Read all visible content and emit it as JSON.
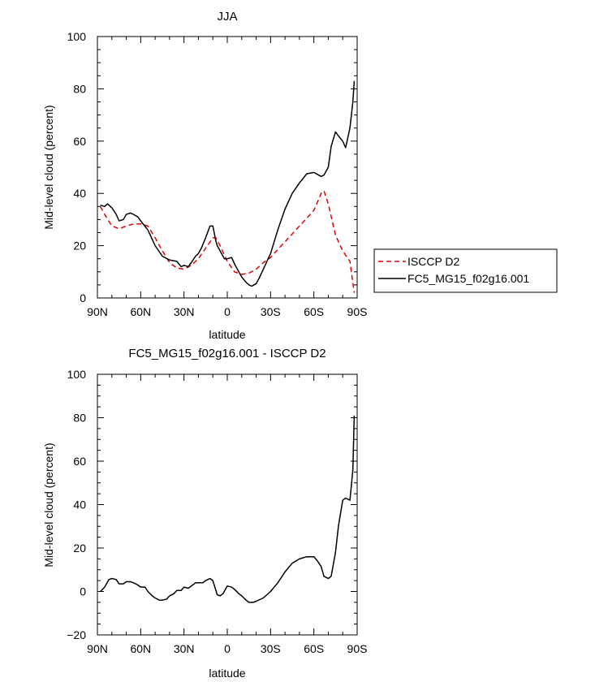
{
  "chart_data": [
    {
      "type": "line",
      "title": "JJA",
      "xlabel": "latitude",
      "ylabel": "Mid-level cloud (percent)",
      "xlim": [
        90,
        -90
      ],
      "ylim": [
        0,
        100
      ],
      "x_ticks": [
        90,
        60,
        30,
        0,
        -30,
        -60,
        -90
      ],
      "x_tick_labels": [
        "90N",
        "60N",
        "30N",
        "0",
        "30S",
        "60S",
        "90S"
      ],
      "y_ticks": [
        0,
        20,
        40,
        60,
        80,
        100
      ],
      "y_tick_labels": [
        "0",
        "20",
        "40",
        "60",
        "80",
        "100"
      ],
      "legend": {
        "placement": "right",
        "entries": [
          "ISCCP D2",
          "FC5_MG15_f02g16.001"
        ]
      },
      "series": [
        {
          "name": "ISCCP D2",
          "color": "#e00000",
          "dash": "dashed",
          "x": [
            88,
            85,
            80,
            75,
            70,
            65,
            60,
            55,
            50,
            45,
            40,
            35,
            30,
            25,
            20,
            15,
            10,
            8,
            5,
            0,
            -5,
            -10,
            -15,
            -20,
            -25,
            -30,
            -35,
            -40,
            -45,
            -50,
            -55,
            -60,
            -62,
            -65,
            -67,
            -70,
            -75,
            -80,
            -85,
            -88
          ],
          "y": [
            35,
            32,
            27.5,
            26.5,
            27.5,
            28.3,
            28.3,
            27.5,
            23,
            18,
            13.5,
            11.5,
            11,
            12.5,
            15,
            19,
            23,
            23,
            20,
            14,
            10,
            9,
            9.5,
            11,
            13.5,
            15.5,
            18.5,
            21.5,
            24.5,
            27.5,
            30.5,
            33.5,
            36,
            40,
            41,
            36,
            24,
            18,
            14,
            2
          ]
        },
        {
          "name": "FC5_MG15_f02g16.001",
          "color": "#000000",
          "dash": "solid",
          "x": [
            88,
            85,
            83,
            80,
            77,
            75,
            72,
            70,
            67,
            65,
            62,
            60,
            55,
            50,
            45,
            40,
            35,
            32,
            30,
            27,
            25,
            22,
            20,
            18,
            15,
            12,
            10,
            8,
            7,
            5,
            2,
            0,
            -3,
            -5,
            -8,
            -10,
            -13,
            -15,
            -17,
            -20,
            -22,
            -25,
            -30,
            -35,
            -40,
            -45,
            -50,
            -55,
            -60,
            -65,
            -67,
            -70,
            -72,
            -75,
            -77,
            -80,
            -82,
            -85,
            -87,
            -88
          ],
          "y": [
            35.5,
            35,
            36,
            34.5,
            32,
            29.5,
            30,
            32,
            32.5,
            32,
            31,
            29.5,
            26,
            20,
            16,
            14.5,
            14,
            12,
            12.5,
            12,
            13.5,
            16,
            17,
            19,
            23,
            27.5,
            27.5,
            22,
            20,
            18,
            15,
            15,
            15.5,
            13,
            10,
            8,
            6,
            5,
            4.5,
            5.5,
            7.5,
            11,
            17,
            26,
            34,
            40,
            44,
            47.5,
            48,
            46.5,
            47,
            50,
            58,
            63.5,
            62,
            60,
            57.5,
            65,
            75,
            83
          ]
        }
      ]
    },
    {
      "type": "line",
      "title": "FC5_MG15_f02g16.001 - ISCCP D2",
      "xlabel": "latitude",
      "ylabel": "Mid-level cloud (percent)",
      "xlim": [
        90,
        -90
      ],
      "ylim": [
        -20,
        100
      ],
      "x_ticks": [
        90,
        60,
        30,
        0,
        -30,
        -60,
        -90
      ],
      "x_tick_labels": [
        "90N",
        "60N",
        "30N",
        "0",
        "30S",
        "60S",
        "90S"
      ],
      "y_ticks": [
        -20,
        0,
        20,
        40,
        60,
        80,
        100
      ],
      "y_tick_labels": [
        "−20",
        "0",
        "20",
        "40",
        "60",
        "80",
        "100"
      ],
      "series": [
        {
          "color": "#000000",
          "dash": "solid",
          "x": [
            88,
            85,
            82,
            80,
            77,
            75,
            72,
            70,
            67,
            65,
            62,
            60,
            57,
            55,
            52,
            50,
            47,
            45,
            42,
            40,
            37,
            35,
            32,
            30,
            27,
            25,
            22,
            20,
            17,
            15,
            12,
            10,
            7,
            5,
            3,
            0,
            -3,
            -5,
            -8,
            -10,
            -13,
            -15,
            -18,
            -20,
            -25,
            -30,
            -35,
            -40,
            -45,
            -50,
            -55,
            -60,
            -62,
            -65,
            -67,
            -70,
            -72,
            -75,
            -77,
            -80,
            -82,
            -85,
            -87,
            -88
          ],
          "y": [
            0,
            2,
            5.5,
            6,
            5.5,
            3.5,
            3.5,
            4.5,
            4.5,
            4,
            3,
            2,
            2,
            0,
            -2,
            -3,
            -4,
            -4,
            -3.5,
            -2,
            -1,
            0.5,
            0.5,
            2,
            1.5,
            2.5,
            4,
            4,
            4,
            5,
            6,
            5,
            -1.5,
            -2,
            -1,
            2.5,
            2,
            1,
            -1,
            -2,
            -4,
            -5,
            -5,
            -4.5,
            -3,
            0,
            4,
            9,
            13,
            15,
            16,
            16,
            14.5,
            11.5,
            7,
            6,
            7,
            18,
            30,
            42,
            43,
            42,
            56,
            81
          ]
        }
      ]
    }
  ]
}
